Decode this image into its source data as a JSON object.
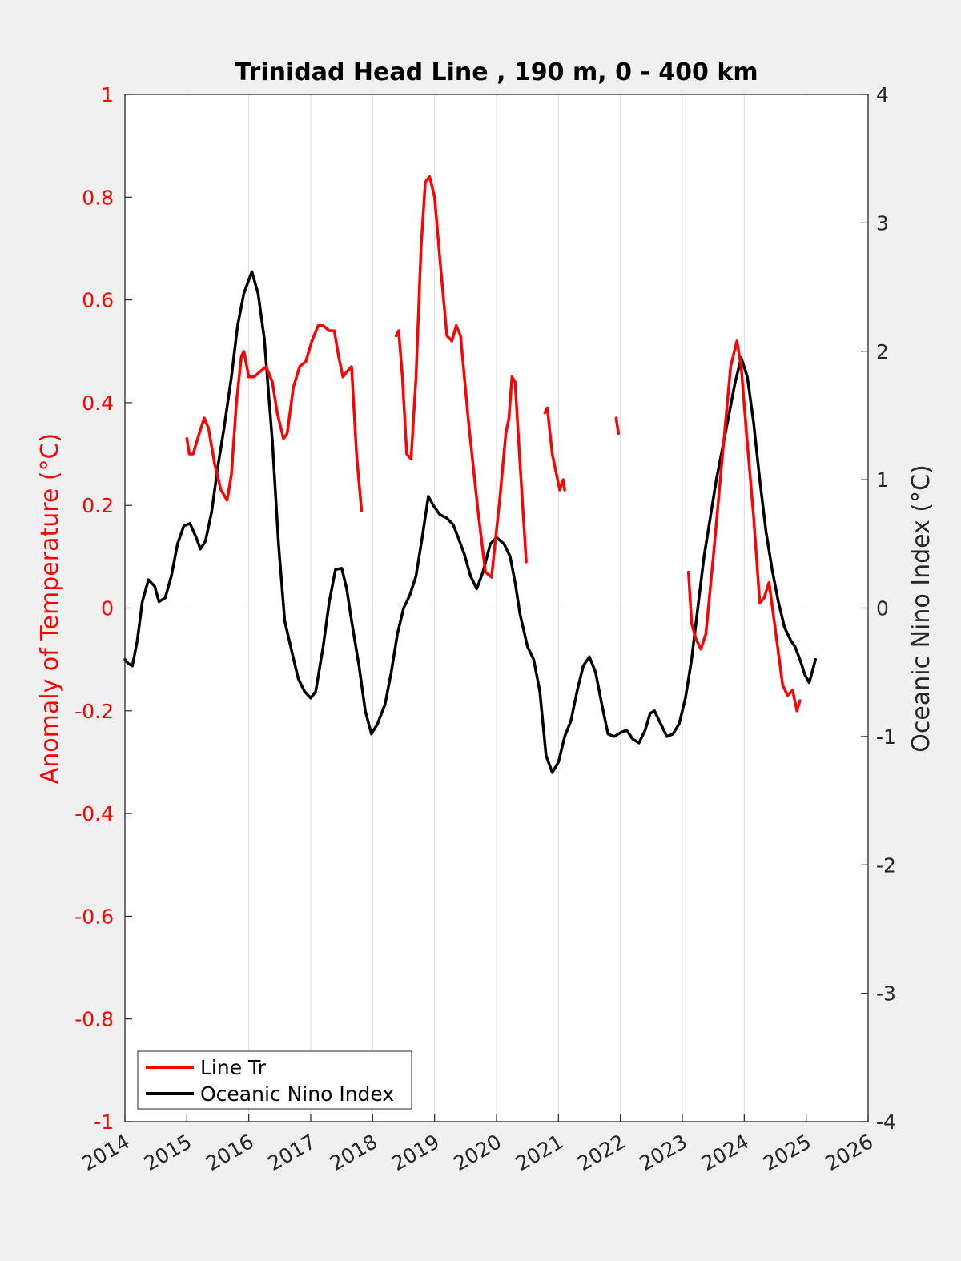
{
  "chart_data": {
    "type": "line",
    "title": "Trinidad Head Line , 190 m, 0 - 400 km",
    "ylabel_left": "Anomaly of Temperature (°C)",
    "ylabel_right": "Oceanic Nino Index (°C)",
    "xlim": [
      2014,
      2026
    ],
    "ylim_left": [
      -1,
      1
    ],
    "ylim_right": [
      -4,
      4
    ],
    "x_ticks": [
      "2014",
      "2015",
      "2016",
      "2017",
      "2018",
      "2019",
      "2020",
      "2021",
      "2022",
      "2023",
      "2024",
      "2025",
      "2026"
    ],
    "y_ticks_left": [
      "-1",
      "-0.8",
      "-0.6",
      "-0.4",
      "-0.2",
      "0",
      "0.2",
      "0.4",
      "0.6",
      "0.8",
      "1"
    ],
    "y_ticks_right": [
      "-4",
      "-3",
      "-2",
      "-1",
      "0",
      "1",
      "2",
      "3",
      "4"
    ],
    "grid": "vertical",
    "legend_position": "bottom-left",
    "colors": {
      "line_tr": "#ff0000",
      "oni": "#000000",
      "zero_line": "#000000",
      "grid": "#dddddd"
    },
    "series": [
      {
        "name": "Line Tr",
        "axis": "left",
        "segments": [
          [
            [
              2015.0,
              0.33
            ],
            [
              2015.04,
              0.3
            ],
            [
              2015.1,
              0.3
            ],
            [
              2015.2,
              0.34
            ],
            [
              2015.28,
              0.37
            ],
            [
              2015.35,
              0.35
            ],
            [
              2015.45,
              0.28
            ],
            [
              2015.55,
              0.23
            ],
            [
              2015.65,
              0.21
            ],
            [
              2015.72,
              0.26
            ],
            [
              2015.8,
              0.4
            ],
            [
              2015.88,
              0.49
            ],
            [
              2015.92,
              0.5
            ],
            [
              2016.0,
              0.45
            ],
            [
              2016.08,
              0.45
            ],
            [
              2016.18,
              0.46
            ],
            [
              2016.28,
              0.47
            ],
            [
              2016.38,
              0.44
            ],
            [
              2016.46,
              0.38
            ],
            [
              2016.56,
              0.33
            ],
            [
              2016.62,
              0.34
            ],
            [
              2016.72,
              0.43
            ],
            [
              2016.82,
              0.47
            ],
            [
              2016.92,
              0.48
            ],
            [
              2017.02,
              0.52
            ],
            [
              2017.12,
              0.55
            ],
            [
              2017.2,
              0.55
            ],
            [
              2017.3,
              0.54
            ],
            [
              2017.38,
              0.54
            ],
            [
              2017.45,
              0.49
            ],
            [
              2017.52,
              0.45
            ],
            [
              2017.58,
              0.46
            ],
            [
              2017.66,
              0.47
            ],
            [
              2017.74,
              0.3
            ],
            [
              2017.82,
              0.19
            ]
          ],
          [
            [
              2018.38,
              0.53
            ],
            [
              2018.42,
              0.54
            ],
            [
              2018.48,
              0.45
            ],
            [
              2018.55,
              0.3
            ],
            [
              2018.62,
              0.29
            ],
            [
              2018.7,
              0.45
            ],
            [
              2018.78,
              0.7
            ],
            [
              2018.85,
              0.83
            ],
            [
              2018.92,
              0.84
            ],
            [
              2019.0,
              0.8
            ],
            [
              2019.1,
              0.66
            ],
            [
              2019.2,
              0.53
            ],
            [
              2019.28,
              0.52
            ],
            [
              2019.35,
              0.55
            ],
            [
              2019.42,
              0.53
            ],
            [
              2019.55,
              0.36
            ],
            [
              2019.7,
              0.19
            ],
            [
              2019.82,
              0.07
            ],
            [
              2019.92,
              0.06
            ],
            [
              2020.05,
              0.21
            ],
            [
              2020.15,
              0.34
            ],
            [
              2020.2,
              0.37
            ],
            [
              2020.25,
              0.45
            ],
            [
              2020.3,
              0.44
            ],
            [
              2020.38,
              0.28
            ],
            [
              2020.48,
              0.09
            ]
          ],
          [
            [
              2020.78,
              0.38
            ],
            [
              2020.82,
              0.39
            ],
            [
              2020.9,
              0.3
            ],
            [
              2021.02,
              0.23
            ],
            [
              2021.08,
              0.25
            ],
            [
              2021.1,
              0.23
            ]
          ],
          [
            [
              2021.93,
              0.37
            ],
            [
              2021.97,
              0.34
            ]
          ],
          [
            [
              2023.1,
              0.07
            ],
            [
              2023.15,
              -0.03
            ],
            [
              2023.22,
              -0.06
            ],
            [
              2023.3,
              -0.08
            ],
            [
              2023.38,
              -0.05
            ],
            [
              2023.5,
              0.1
            ],
            [
              2023.65,
              0.3
            ],
            [
              2023.78,
              0.47
            ],
            [
              2023.88,
              0.52
            ],
            [
              2023.95,
              0.47
            ],
            [
              2024.05,
              0.32
            ],
            [
              2024.15,
              0.18
            ],
            [
              2024.25,
              0.01
            ],
            [
              2024.32,
              0.02
            ],
            [
              2024.4,
              0.05
            ],
            [
              2024.5,
              -0.04
            ],
            [
              2024.62,
              -0.15
            ],
            [
              2024.7,
              -0.17
            ],
            [
              2024.78,
              -0.16
            ],
            [
              2024.85,
              -0.2
            ],
            [
              2024.9,
              -0.18
            ]
          ]
        ]
      },
      {
        "name": "Oceanic Nino Index",
        "axis": "right",
        "segments": [
          [
            [
              2014.0,
              -0.4
            ],
            [
              2014.05,
              -0.43
            ],
            [
              2014.12,
              -0.45
            ],
            [
              2014.2,
              -0.25
            ],
            [
              2014.28,
              0.05
            ],
            [
              2014.38,
              0.22
            ],
            [
              2014.48,
              0.17
            ],
            [
              2014.55,
              0.05
            ],
            [
              2014.65,
              0.08
            ],
            [
              2014.75,
              0.25
            ],
            [
              2014.85,
              0.5
            ],
            [
              2014.95,
              0.64
            ],
            [
              2015.05,
              0.66
            ],
            [
              2015.15,
              0.55
            ],
            [
              2015.22,
              0.46
            ],
            [
              2015.3,
              0.52
            ],
            [
              2015.4,
              0.75
            ],
            [
              2015.5,
              1.1
            ],
            [
              2015.6,
              1.4
            ],
            [
              2015.72,
              1.8
            ],
            [
              2015.82,
              2.2
            ],
            [
              2015.92,
              2.45
            ],
            [
              2016.05,
              2.62
            ],
            [
              2016.15,
              2.45
            ],
            [
              2016.25,
              2.1
            ],
            [
              2016.38,
              1.3
            ],
            [
              2016.48,
              0.5
            ],
            [
              2016.58,
              -0.1
            ],
            [
              2016.7,
              -0.35
            ],
            [
              2016.8,
              -0.55
            ],
            [
              2016.9,
              -0.65
            ],
            [
              2017.0,
              -0.7
            ],
            [
              2017.08,
              -0.65
            ],
            [
              2017.2,
              -0.3
            ],
            [
              2017.3,
              0.05
            ],
            [
              2017.4,
              0.3
            ],
            [
              2017.5,
              0.31
            ],
            [
              2017.58,
              0.15
            ],
            [
              2017.66,
              -0.1
            ],
            [
              2017.78,
              -0.45
            ],
            [
              2017.88,
              -0.8
            ],
            [
              2017.98,
              -0.98
            ],
            [
              2018.08,
              -0.9
            ],
            [
              2018.2,
              -0.75
            ],
            [
              2018.3,
              -0.5
            ],
            [
              2018.4,
              -0.2
            ],
            [
              2018.5,
              0.0
            ],
            [
              2018.6,
              0.1
            ],
            [
              2018.7,
              0.25
            ],
            [
              2018.8,
              0.55
            ],
            [
              2018.9,
              0.87
            ],
            [
              2018.98,
              0.8
            ],
            [
              2019.08,
              0.73
            ],
            [
              2019.2,
              0.7
            ],
            [
              2019.3,
              0.65
            ],
            [
              2019.38,
              0.55
            ],
            [
              2019.48,
              0.42
            ],
            [
              2019.58,
              0.25
            ],
            [
              2019.68,
              0.15
            ],
            [
              2019.78,
              0.28
            ],
            [
              2019.9,
              0.5
            ],
            [
              2020.0,
              0.55
            ],
            [
              2020.12,
              0.5
            ],
            [
              2020.22,
              0.4
            ],
            [
              2020.3,
              0.2
            ],
            [
              2020.38,
              -0.05
            ],
            [
              2020.5,
              -0.3
            ],
            [
              2020.6,
              -0.4
            ],
            [
              2020.7,
              -0.65
            ],
            [
              2020.8,
              -1.15
            ],
            [
              2020.9,
              -1.28
            ],
            [
              2021.0,
              -1.2
            ],
            [
              2021.1,
              -1.0
            ],
            [
              2021.2,
              -0.88
            ],
            [
              2021.3,
              -0.65
            ],
            [
              2021.4,
              -0.45
            ],
            [
              2021.5,
              -0.38
            ],
            [
              2021.6,
              -0.5
            ],
            [
              2021.7,
              -0.75
            ],
            [
              2021.8,
              -0.98
            ],
            [
              2021.9,
              -1.0
            ],
            [
              2022.0,
              -0.97
            ],
            [
              2022.1,
              -0.95
            ],
            [
              2022.2,
              -1.02
            ],
            [
              2022.3,
              -1.05
            ],
            [
              2022.4,
              -0.95
            ],
            [
              2022.48,
              -0.82
            ],
            [
              2022.55,
              -0.8
            ],
            [
              2022.65,
              -0.9
            ],
            [
              2022.75,
              -1.0
            ],
            [
              2022.85,
              -0.98
            ],
            [
              2022.95,
              -0.9
            ],
            [
              2023.05,
              -0.7
            ],
            [
              2023.15,
              -0.4
            ],
            [
              2023.25,
              0.0
            ],
            [
              2023.35,
              0.4
            ],
            [
              2023.45,
              0.7
            ],
            [
              2023.55,
              1.0
            ],
            [
              2023.65,
              1.25
            ],
            [
              2023.75,
              1.5
            ],
            [
              2023.85,
              1.75
            ],
            [
              2023.95,
              1.95
            ],
            [
              2024.05,
              1.8
            ],
            [
              2024.15,
              1.45
            ],
            [
              2024.25,
              1.0
            ],
            [
              2024.35,
              0.6
            ],
            [
              2024.45,
              0.3
            ],
            [
              2024.55,
              0.05
            ],
            [
              2024.65,
              -0.15
            ],
            [
              2024.75,
              -0.25
            ],
            [
              2024.82,
              -0.3
            ],
            [
              2024.9,
              -0.4
            ],
            [
              2024.98,
              -0.52
            ],
            [
              2025.05,
              -0.58
            ],
            [
              2025.15,
              -0.4
            ]
          ]
        ]
      }
    ]
  },
  "legend": {
    "items": [
      {
        "label": "Line Tr",
        "color": "#ff0000"
      },
      {
        "label": "Oceanic Nino Index",
        "color": "#000000"
      }
    ]
  }
}
